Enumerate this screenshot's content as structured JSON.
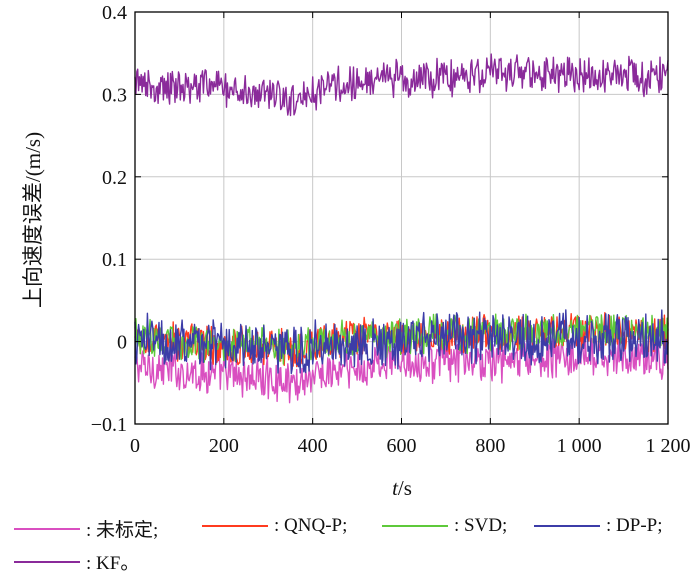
{
  "chart_data": {
    "type": "line",
    "title": "",
    "xlabel_italic": "t",
    "xlabel_unit": "/s",
    "ylabel": "上向速度误差/(m/s)",
    "xlim": [
      0,
      1200
    ],
    "ylim": [
      -0.1,
      0.4
    ],
    "x_ticks": [
      0,
      200,
      400,
      600,
      800,
      1000,
      1200
    ],
    "x_tick_labels": [
      "0",
      "200",
      "400",
      "600",
      "800",
      "1 000",
      "1 200"
    ],
    "y_ticks": [
      -0.1,
      0,
      0.1,
      0.2,
      0.3,
      0.4
    ],
    "y_tick_labels": [
      "−0.1",
      "0",
      "0.1",
      "0.2",
      "0.3",
      "0.4"
    ],
    "grid": true,
    "x": [
      0,
      100,
      200,
      300,
      360,
      400,
      500,
      600,
      700,
      800,
      900,
      1000,
      1100,
      1200
    ],
    "series": [
      {
        "name": ": 未标定;",
        "color": "#d94fc0",
        "values": [
          -0.03,
          -0.035,
          -0.04,
          -0.045,
          -0.05,
          -0.04,
          -0.035,
          -0.02,
          -0.025,
          -0.025,
          -0.02,
          -0.02,
          -0.02,
          -0.02
        ],
        "noise": 0.022
      },
      {
        "name": ": QNQ-P;",
        "color": "#ff3b1f",
        "values": [
          0.0,
          0.0,
          -0.005,
          -0.005,
          -0.01,
          -0.005,
          0.005,
          0.005,
          0.01,
          0.01,
          0.01,
          0.01,
          0.01,
          0.01
        ],
        "noise": 0.02
      },
      {
        "name": ": SVD;",
        "color": "#5ec93a",
        "values": [
          0.005,
          0.0,
          0.0,
          -0.005,
          -0.005,
          0.0,
          0.005,
          0.005,
          0.01,
          0.01,
          0.01,
          0.015,
          0.015,
          0.015
        ],
        "noise": 0.02
      },
      {
        "name": ": DP-P;",
        "color": "#3c3ca8",
        "values": [
          0.0,
          0.0,
          0.0,
          -0.01,
          -0.015,
          -0.005,
          0.0,
          0.0,
          0.005,
          0.005,
          0.005,
          0.005,
          0.005,
          0.005
        ],
        "noise": 0.028
      },
      {
        "name": ": KF。",
        "color": "#8a2a9a",
        "values": [
          0.31,
          0.31,
          0.31,
          0.3,
          0.295,
          0.305,
          0.315,
          0.32,
          0.32,
          0.325,
          0.325,
          0.325,
          0.325,
          0.32
        ],
        "noise": 0.02
      }
    ],
    "legend_position": "bottom"
  }
}
